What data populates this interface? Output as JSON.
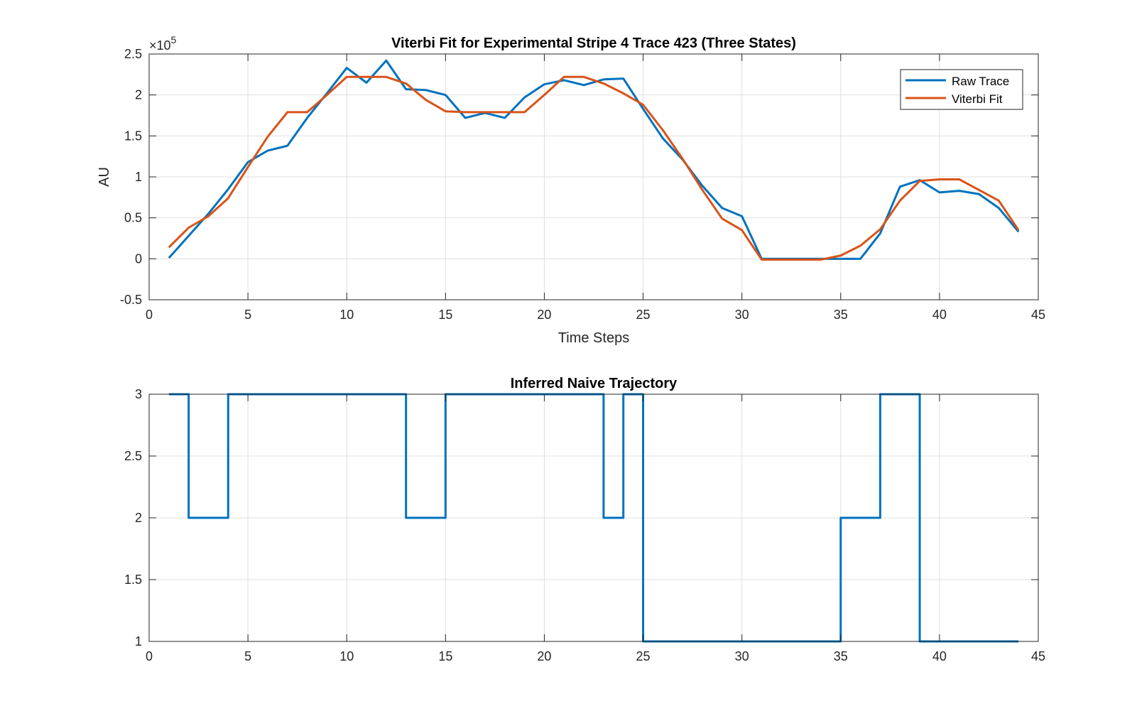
{
  "chart_data": [
    {
      "type": "line",
      "title": "Viterbi Fit for Experimental Stripe 4 Trace 423 (Three States)",
      "xlabel": "Time Steps",
      "ylabel": "AU",
      "y_exponent_label": "×10",
      "y_exponent_power": "5",
      "xlim": [
        0,
        45
      ],
      "ylim": [
        -0.5,
        2.5
      ],
      "y_scale_factor": 100000,
      "x_ticks": [
        0,
        5,
        10,
        15,
        20,
        25,
        30,
        35,
        40,
        45
      ],
      "y_ticks": [
        -0.5,
        0,
        0.5,
        1,
        1.5,
        2,
        2.5
      ],
      "grid": true,
      "legend_position": "top-right",
      "x": [
        1,
        2,
        3,
        4,
        5,
        6,
        7,
        8,
        9,
        10,
        11,
        12,
        13,
        14,
        15,
        16,
        17,
        18,
        19,
        20,
        21,
        22,
        23,
        24,
        25,
        26,
        27,
        28,
        29,
        30,
        31,
        32,
        33,
        34,
        35,
        36,
        37,
        38,
        39,
        40,
        41,
        42,
        43,
        44
      ],
      "series": [
        {
          "name": "Raw Trace",
          "color": "#0072BD",
          "values": [
            0.01,
            0.28,
            0.55,
            0.85,
            1.18,
            1.32,
            1.38,
            1.72,
            2.02,
            2.33,
            2.15,
            2.42,
            2.07,
            2.06,
            2.0,
            1.72,
            1.78,
            1.72,
            1.97,
            2.13,
            2.18,
            2.12,
            2.19,
            2.2,
            1.83,
            1.47,
            1.21,
            0.89,
            0.62,
            0.52,
            0.0,
            0.0,
            0.0,
            0.0,
            0.0,
            0.0,
            0.31,
            0.88,
            0.96,
            0.81,
            0.83,
            0.79,
            0.62,
            0.33
          ]
        },
        {
          "name": "Viterbi Fit",
          "color": "#D95319",
          "values": [
            0.14,
            0.38,
            0.52,
            0.74,
            1.12,
            1.49,
            1.79,
            1.79,
            2.0,
            2.22,
            2.22,
            2.22,
            2.14,
            1.94,
            1.8,
            1.79,
            1.79,
            1.79,
            1.79,
            2.0,
            2.22,
            2.22,
            2.14,
            2.02,
            1.88,
            1.57,
            1.22,
            0.84,
            0.49,
            0.35,
            -0.01,
            -0.01,
            -0.01,
            -0.01,
            0.04,
            0.16,
            0.36,
            0.71,
            0.95,
            0.97,
            0.97,
            0.84,
            0.71,
            0.35
          ]
        }
      ]
    },
    {
      "type": "line",
      "title": "Inferred Naive Trajectory",
      "xlabel": "",
      "ylabel": "",
      "xlim": [
        0,
        45
      ],
      "ylim": [
        1,
        3
      ],
      "x_ticks": [
        0,
        5,
        10,
        15,
        20,
        25,
        30,
        35,
        40,
        45
      ],
      "y_ticks": [
        1,
        1.5,
        2,
        2.5,
        3
      ],
      "grid": true,
      "step": true,
      "x": [
        1,
        2,
        3,
        4,
        5,
        6,
        7,
        8,
        9,
        10,
        11,
        12,
        13,
        14,
        15,
        16,
        17,
        18,
        19,
        20,
        21,
        22,
        23,
        24,
        25,
        26,
        27,
        28,
        29,
        30,
        31,
        32,
        33,
        34,
        35,
        36,
        37,
        38,
        39,
        40,
        41,
        42,
        43,
        44
      ],
      "series": [
        {
          "color": "#0072BD",
          "values": [
            3,
            2,
            2,
            3,
            3,
            3,
            3,
            3,
            3,
            3,
            3,
            3,
            2,
            2,
            3,
            3,
            3,
            3,
            3,
            3,
            3,
            3,
            2,
            3,
            1,
            1,
            1,
            1,
            1,
            1,
            1,
            1,
            1,
            1,
            2,
            2,
            3,
            3,
            1,
            1,
            1,
            1,
            1,
            1
          ]
        }
      ]
    }
  ]
}
